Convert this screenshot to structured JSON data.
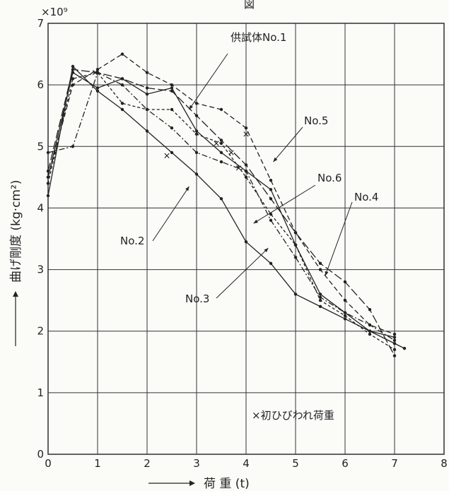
{
  "chart_data": {
    "type": "line",
    "title_fragment": "図",
    "exponent_label": "×10⁹",
    "xlabel": "荷 重 (t)",
    "ylabel": "曲げ剛度 (kg·cm²)",
    "xlim": [
      0,
      8
    ],
    "ylim": [
      0,
      7
    ],
    "x_ticks": [
      "0",
      "1",
      "2",
      "3",
      "4",
      "5",
      "6",
      "7",
      "8"
    ],
    "y_ticks": [
      "0",
      "1",
      "2",
      "3",
      "4",
      "5",
      "6",
      "7"
    ],
    "grid": true,
    "series": [
      {
        "name": "供試体No.1",
        "dash": "solid",
        "x": [
          0,
          0.5,
          1.0,
          1.5,
          2.0,
          2.5,
          3.0,
          3.5,
          4.0,
          4.5,
          5.0,
          5.5,
          6.0,
          6.5,
          7.0,
          7.2
        ],
        "y": [
          4.5,
          6.2,
          5.95,
          6.1,
          5.85,
          5.95,
          5.25,
          4.9,
          4.6,
          4.3,
          3.4,
          2.6,
          2.3,
          2.0,
          1.8,
          1.72
        ]
      },
      {
        "name": "No.2",
        "dash": "solid",
        "x": [
          0,
          0.5,
          1.0,
          1.5,
          2.0,
          2.5,
          3.0,
          3.5,
          4.0,
          4.5,
          5.0,
          5.5,
          6.0,
          6.5,
          7.0
        ],
        "y": [
          4.2,
          6.3,
          5.9,
          5.6,
          5.25,
          4.9,
          4.55,
          4.15,
          3.45,
          3.1,
          2.6,
          2.4,
          2.2,
          2.0,
          1.9
        ]
      },
      {
        "name": "No.3",
        "dash": "dash",
        "x": [
          0,
          0.5,
          1.0,
          1.5,
          2.0,
          2.5,
          3.0,
          3.5,
          4.0,
          4.5,
          5.0,
          5.5,
          6.0,
          6.5,
          7.0
        ],
        "y": [
          4.5,
          6.0,
          6.25,
          6.5,
          6.2,
          6.0,
          5.7,
          5.6,
          5.3,
          4.45,
          3.6,
          3.0,
          2.5,
          2.1,
          1.95
        ]
      },
      {
        "name": "No.4",
        "dash": "dashdot",
        "x": [
          0,
          0.5,
          1.0,
          1.5,
          2.0,
          2.5,
          3.0,
          3.5,
          4.0,
          4.5,
          5.0,
          5.5,
          6.0,
          6.5,
          7.0
        ],
        "y": [
          4.9,
          5.0,
          6.2,
          6.0,
          5.6,
          5.3,
          4.9,
          4.75,
          4.6,
          3.8,
          3.2,
          2.55,
          2.3,
          2.1,
          1.85
        ]
      },
      {
        "name": "No.5",
        "dash": "longdash",
        "x": [
          0,
          0.5,
          1.0,
          1.5,
          2.0,
          2.5,
          3.0,
          3.5,
          4.0,
          4.5,
          5.0,
          5.5,
          6.0,
          6.5,
          7.0
        ],
        "y": [
          4.6,
          6.25,
          6.2,
          6.1,
          5.95,
          5.9,
          5.5,
          5.1,
          4.7,
          4.15,
          3.6,
          3.1,
          2.8,
          2.35,
          1.6
        ]
      },
      {
        "name": "No.6",
        "dash": "shortdash",
        "x": [
          0,
          0.5,
          1.0,
          1.5,
          2.0,
          2.5,
          3.0,
          3.5,
          4.0,
          4.5,
          5.0,
          5.5,
          6.0,
          6.5,
          7.0
        ],
        "y": [
          4.4,
          6.1,
          6.2,
          5.7,
          5.6,
          5.6,
          5.2,
          5.05,
          4.5,
          3.9,
          3.4,
          2.5,
          2.25,
          1.95,
          1.7
        ]
      }
    ],
    "crack_marker_label": "×初ひびわれ荷重",
    "crack_points": [
      {
        "x": 0.95,
        "y": 6.2
      },
      {
        "x": 2.4,
        "y": 4.85
      },
      {
        "x": 3.4,
        "y": 5.05
      },
      {
        "x": 3.7,
        "y": 4.9
      },
      {
        "x": 3.85,
        "y": 4.65
      },
      {
        "x": 4.0,
        "y": 5.2
      }
    ],
    "annotations": [
      {
        "text": "供試体No.1",
        "target_series": 0
      },
      {
        "text": "No.5",
        "target_series": 4
      },
      {
        "text": "No.6",
        "target_series": 5
      },
      {
        "text": "No.4",
        "target_series": 3
      },
      {
        "text": "No.2",
        "target_series": 1
      },
      {
        "text": "No.3",
        "target_series": 2
      }
    ]
  }
}
